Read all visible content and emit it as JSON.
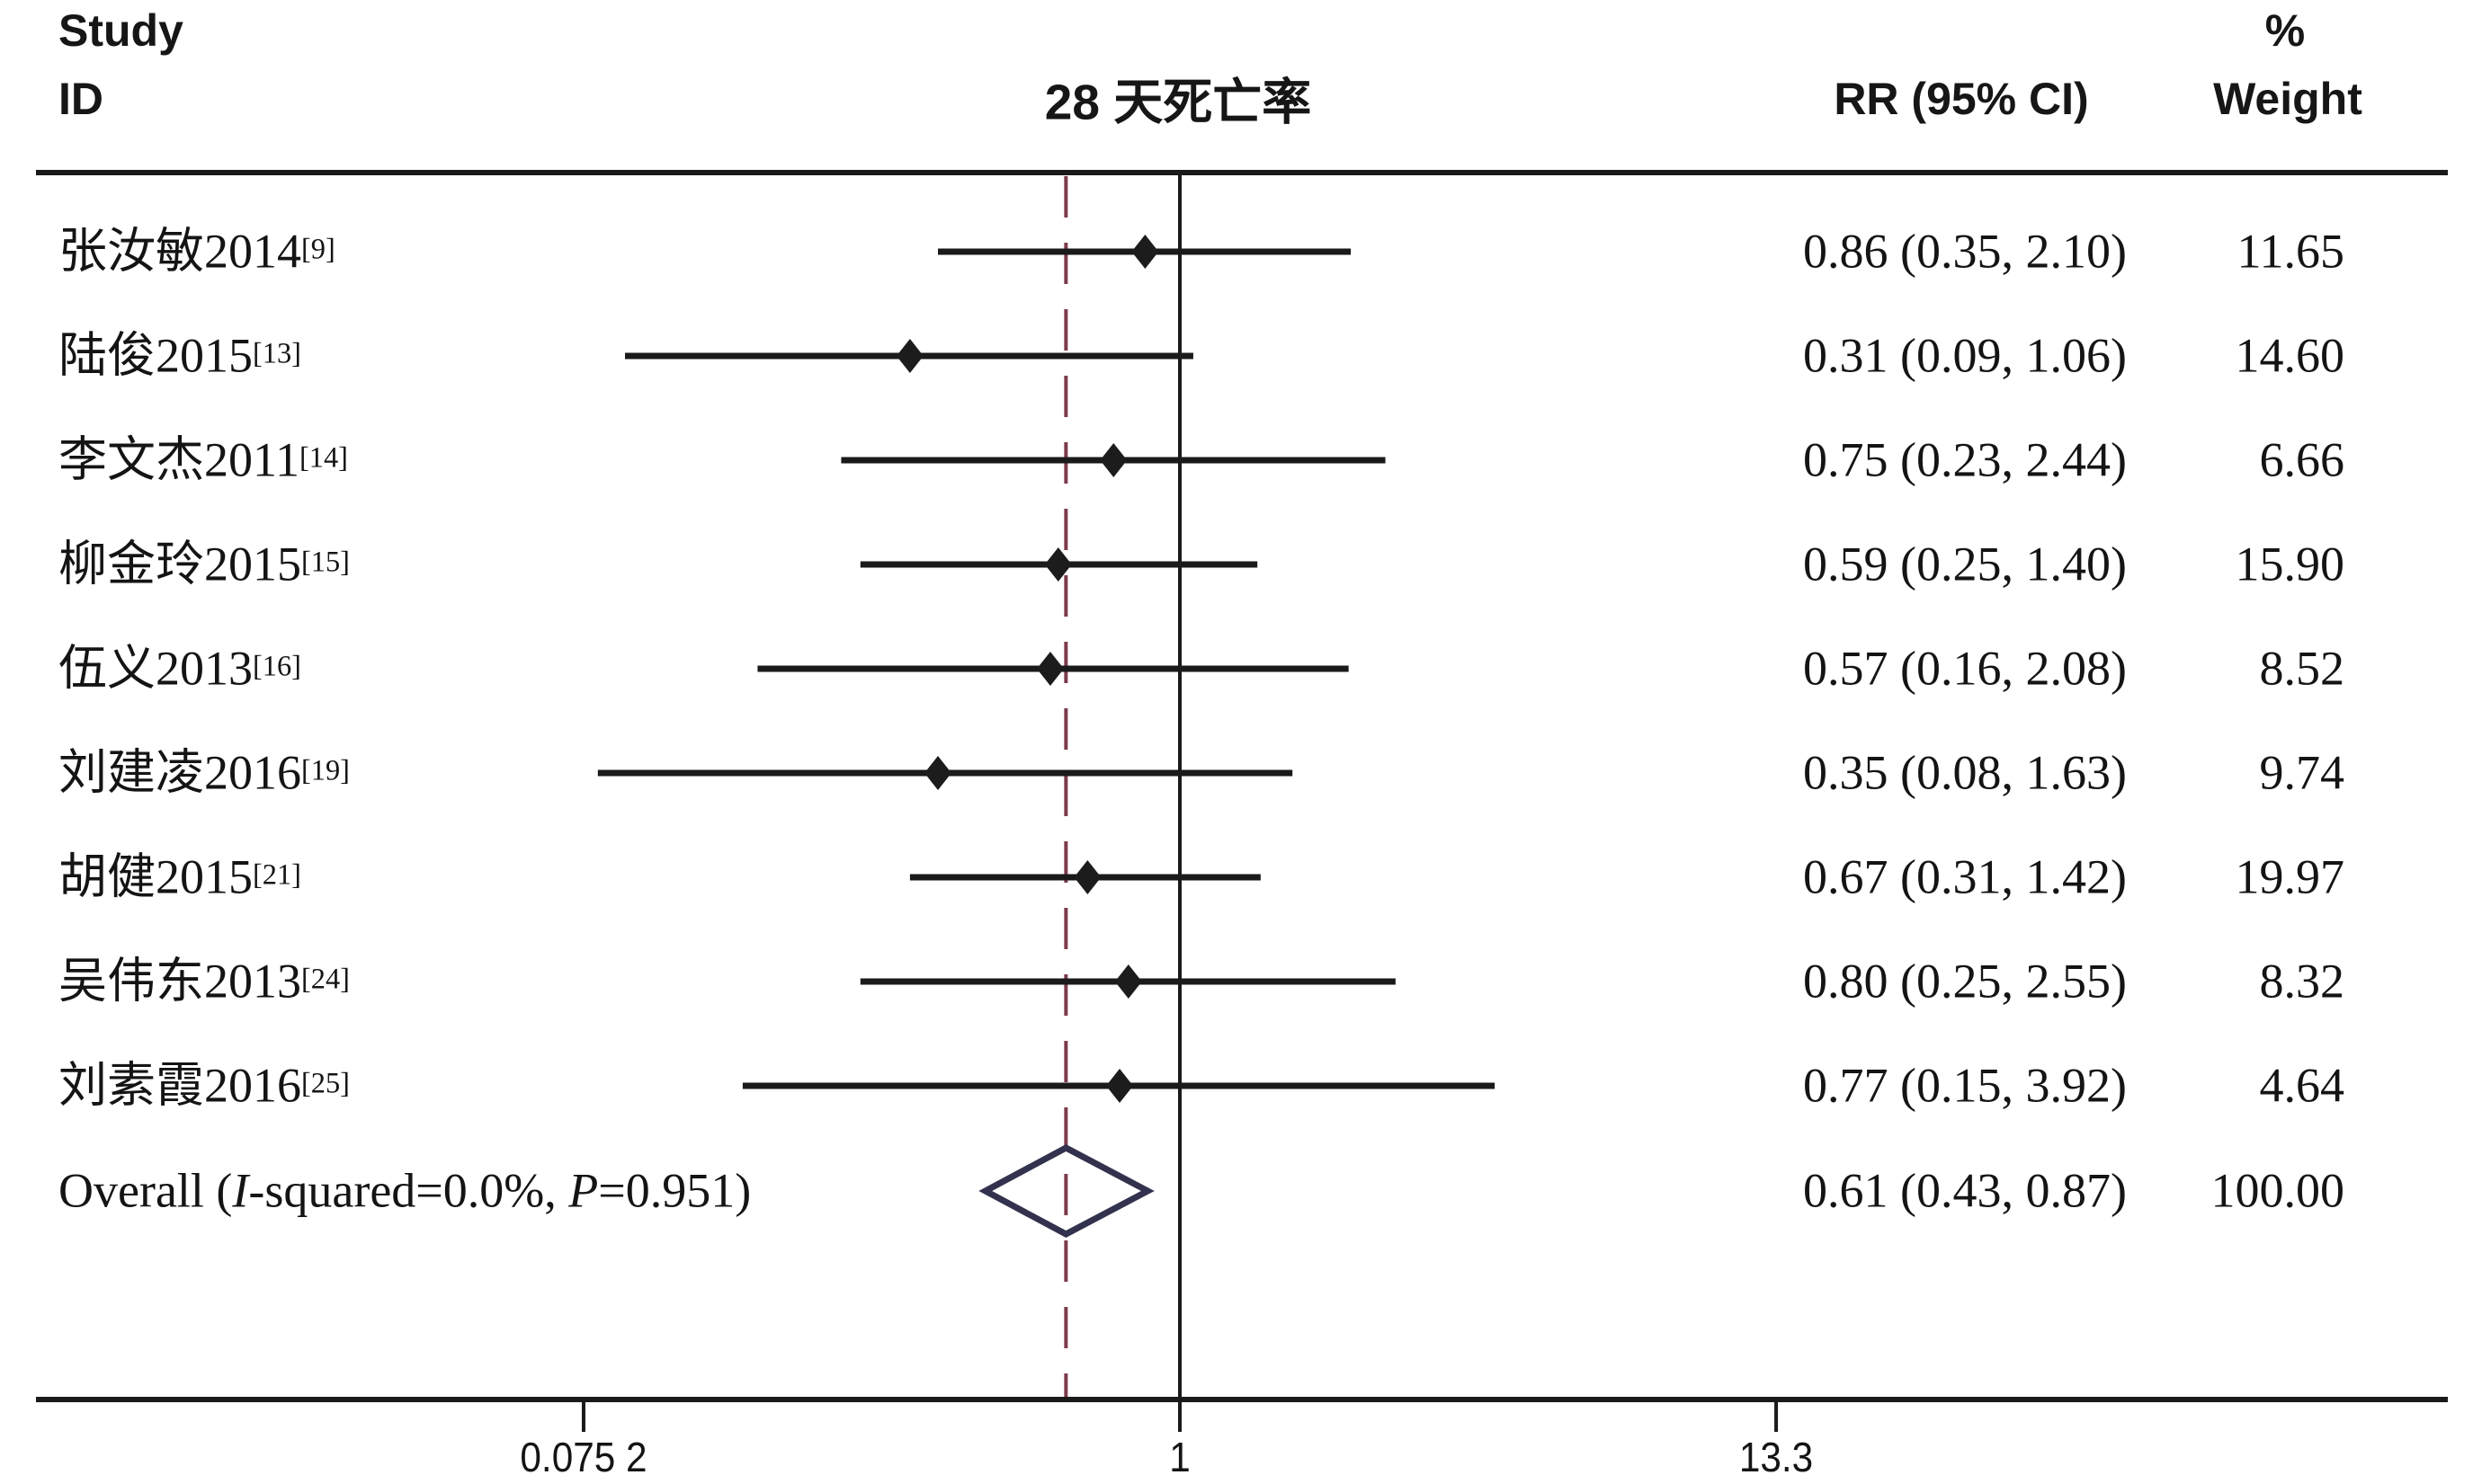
{
  "header": {
    "study": "Study",
    "id": "ID",
    "title": "28 天死亡率",
    "rr": "RR (95% CI)",
    "percent": "%",
    "weight": "Weight"
  },
  "chart_data": {
    "type": "forest",
    "title": "28 天死亡率",
    "effect_measure": "RR",
    "x_axis": {
      "scale": "log",
      "range": [
        0.0752,
        13.3
      ],
      "ticks": [
        {
          "value": 0.0752,
          "label": "0.075 2"
        },
        {
          "value": 1,
          "label": "1"
        },
        {
          "value": 13.3,
          "label": "13.3"
        }
      ]
    },
    "null_line_value": 1,
    "overall_line_value": 0.61,
    "studies": [
      {
        "name": "张汝敏2014",
        "ref": "[9]",
        "rr": 0.86,
        "ci_low": 0.35,
        "ci_high": 2.1,
        "rr_label": "0.86 (0.35, 2.10)",
        "weight": 11.65,
        "weight_label": "11.65"
      },
      {
        "name": "陆俊2015",
        "ref": "[13]",
        "rr": 0.31,
        "ci_low": 0.09,
        "ci_high": 1.06,
        "rr_label": "0.31 (0.09, 1.06)",
        "weight": 14.6,
        "weight_label": "14.60"
      },
      {
        "name": "李文杰2011",
        "ref": "[14]",
        "rr": 0.75,
        "ci_low": 0.23,
        "ci_high": 2.44,
        "rr_label": "0.75 (0.23, 2.44)",
        "weight": 6.66,
        "weight_label": "6.66"
      },
      {
        "name": "柳金玲2015",
        "ref": "[15]",
        "rr": 0.59,
        "ci_low": 0.25,
        "ci_high": 1.4,
        "rr_label": "0.59 (0.25, 1.40)",
        "weight": 15.9,
        "weight_label": "15.90"
      },
      {
        "name": "伍义2013",
        "ref": "[16]",
        "rr": 0.57,
        "ci_low": 0.16,
        "ci_high": 2.08,
        "rr_label": "0.57 (0.16, 2.08)",
        "weight": 8.52,
        "weight_label": "8.52"
      },
      {
        "name": "刘建凌2016",
        "ref": "[19]",
        "rr": 0.35,
        "ci_low": 0.08,
        "ci_high": 1.63,
        "rr_label": "0.35 (0.08, 1.63)",
        "weight": 9.74,
        "weight_label": "9.74"
      },
      {
        "name": "胡健2015",
        "ref": "[21]",
        "rr": 0.67,
        "ci_low": 0.31,
        "ci_high": 1.42,
        "rr_label": "0.67 (0.31, 1.42)",
        "weight": 19.97,
        "weight_label": "19.97"
      },
      {
        "name": "吴伟东2013",
        "ref": "[24]",
        "rr": 0.8,
        "ci_low": 0.25,
        "ci_high": 2.55,
        "rr_label": "0.80 (0.25, 2.55)",
        "weight": 8.32,
        "weight_label": "8.32"
      },
      {
        "name": "刘素霞2016",
        "ref": "[25]",
        "rr": 0.77,
        "ci_low": 0.15,
        "ci_high": 3.92,
        "rr_label": "0.77 (0.15, 3.92)",
        "weight": 4.64,
        "weight_label": "4.64"
      }
    ],
    "overall": {
      "label": "Overall (I-squared=0.0%, P=0.951)",
      "rr": 0.61,
      "ci_low": 0.43,
      "ci_high": 0.87,
      "rr_label": "0.61 (0.43, 0.87)",
      "weight": 100.0,
      "weight_label": "100.00"
    },
    "colors": {
      "line": "#1a1a1a",
      "marker": "#1c1c1c",
      "dashed_line": "#7d3b4b",
      "diamond_outline": "#32324e",
      "text": "#141414"
    }
  }
}
